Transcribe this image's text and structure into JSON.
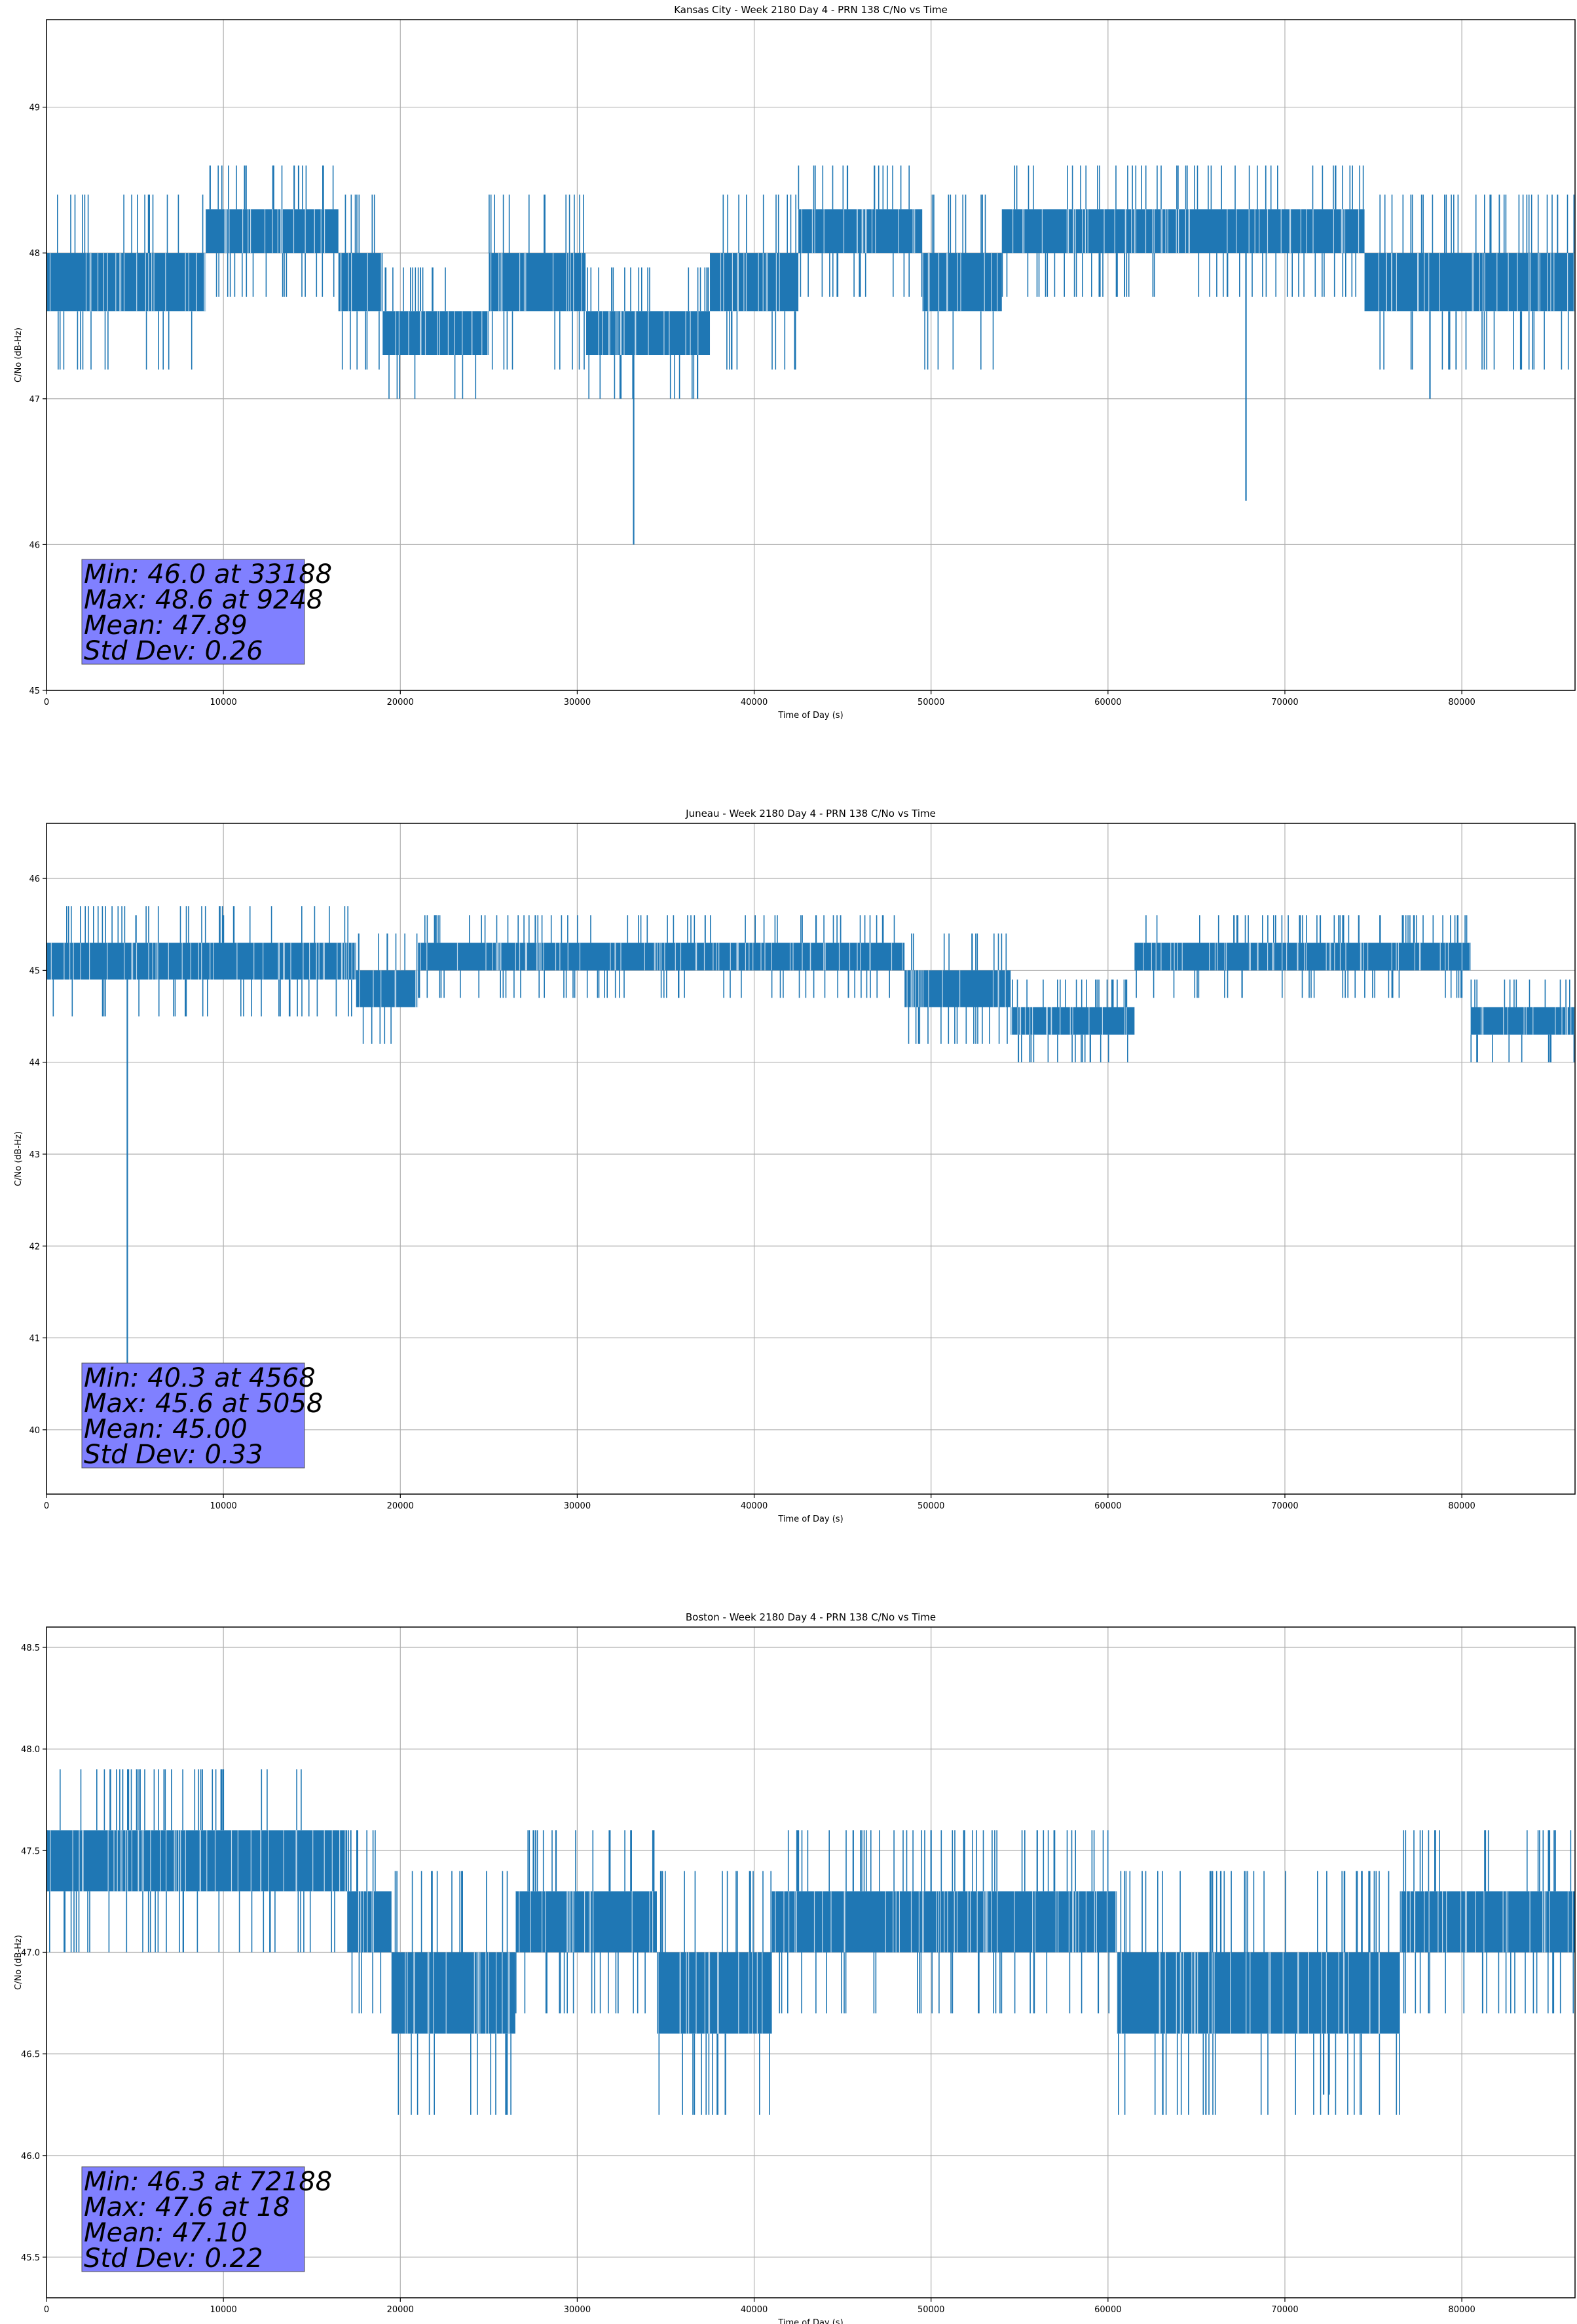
{
  "figure": {
    "background": "#ffffff",
    "line_color": "#1f77b4",
    "statbox_color": "#8080ff",
    "grid_color": "#b0b0b0"
  },
  "chart_data": [
    {
      "type": "line",
      "title": "Kansas City - Week 2180 Day 4 - PRN 138 C/No vs Time",
      "xlabel": "Time of Day (s)",
      "ylabel": "C/No (dB-Hz)",
      "xlim": [
        0,
        86400
      ],
      "ylim": [
        45.0,
        49.6
      ],
      "xticks": [
        0,
        10000,
        20000,
        30000,
        40000,
        50000,
        60000,
        70000,
        80000
      ],
      "yticks": [
        45,
        46,
        47,
        48,
        49
      ],
      "ytick_labels": [
        "45",
        "46",
        "47",
        "48",
        "49"
      ],
      "grid": true,
      "series": [
        {
          "name": "C/No",
          "segments": [
            {
              "start": 0,
              "end": 9000,
              "low": 47.6,
              "high": 48.0
            },
            {
              "start": 9000,
              "end": 16500,
              "low": 48.0,
              "high": 48.3
            },
            {
              "start": 16500,
              "end": 19000,
              "low": 47.6,
              "high": 48.0
            },
            {
              "start": 19000,
              "end": 25000,
              "low": 47.3,
              "high": 47.6
            },
            {
              "start": 25000,
              "end": 30500,
              "low": 47.6,
              "high": 48.0
            },
            {
              "start": 30500,
              "end": 37500,
              "low": 47.3,
              "high": 47.6
            },
            {
              "start": 37500,
              "end": 42500,
              "low": 47.6,
              "high": 48.0
            },
            {
              "start": 42500,
              "end": 49500,
              "low": 48.0,
              "high": 48.3
            },
            {
              "start": 49500,
              "end": 54000,
              "low": 47.6,
              "high": 48.0
            },
            {
              "start": 54000,
              "end": 74500,
              "low": 48.0,
              "high": 48.3
            },
            {
              "start": 74500,
              "end": 86400,
              "low": 47.6,
              "high": 48.0
            }
          ],
          "spikes": [
            [
              9248,
              48.6
            ],
            [
              11200,
              48.6
            ],
            [
              12800,
              48.6
            ],
            [
              14000,
              48.6
            ],
            [
              46800,
              48.6
            ],
            [
              33188,
              46.0
            ],
            [
              36800,
              47.0
            ],
            [
              67800,
              46.3
            ],
            [
              78200,
              47.0
            ]
          ]
        }
      ],
      "stats": {
        "min": "Min: 46.0 at 33188",
        "max": "Max: 48.6 at 9248",
        "mean": "Mean: 47.89",
        "std": "Std Dev: 0.26"
      }
    },
    {
      "type": "line",
      "title": "Juneau - Week 2180 Day 4 - PRN 138 C/No vs Time",
      "xlabel": "Time of Day (s)",
      "ylabel": "C/No (dB-Hz)",
      "xlim": [
        0,
        86400
      ],
      "ylim": [
        39.3,
        46.6
      ],
      "xticks": [
        0,
        10000,
        20000,
        30000,
        40000,
        50000,
        60000,
        70000,
        80000
      ],
      "yticks": [
        40,
        41,
        42,
        43,
        44,
        45,
        46
      ],
      "ytick_labels": [
        "40",
        "41",
        "42",
        "43",
        "44",
        "45",
        "46"
      ],
      "grid": true,
      "series": [
        {
          "name": "C/No",
          "segments": [
            {
              "start": 0,
              "end": 17500,
              "low": 44.9,
              "high": 45.3
            },
            {
              "start": 17500,
              "end": 21000,
              "low": 44.6,
              "high": 45.0
            },
            {
              "start": 21000,
              "end": 48500,
              "low": 45.0,
              "high": 45.3
            },
            {
              "start": 48500,
              "end": 54500,
              "low": 44.6,
              "high": 45.0
            },
            {
              "start": 54500,
              "end": 61500,
              "low": 44.3,
              "high": 44.6
            },
            {
              "start": 61500,
              "end": 80500,
              "low": 45.0,
              "high": 45.3
            },
            {
              "start": 80500,
              "end": 86400,
              "low": 44.3,
              "high": 44.6
            }
          ],
          "spikes": [
            [
              4568,
              40.3
            ],
            [
              5058,
              45.6
            ],
            [
              10000,
              45.6
            ],
            [
              22000,
              45.6
            ],
            [
              43500,
              45.6
            ],
            [
              59000,
              44.0
            ],
            [
              72000,
              45.6
            ],
            [
              85000,
              44.0
            ]
          ]
        }
      ],
      "stats": {
        "min": "Min: 40.3 at 4568",
        "max": "Max: 45.6 at 5058",
        "mean": "Mean: 45.00",
        "std": "Std Dev: 0.33"
      }
    },
    {
      "type": "line",
      "title": "Boston - Week 2180 Day 4 - PRN 138 C/No vs Time",
      "xlabel": "Time of Day (s)",
      "ylabel": "C/No (dB-Hz)",
      "xlim": [
        0,
        86400
      ],
      "ylim": [
        45.3,
        48.6
      ],
      "xticks": [
        0,
        10000,
        20000,
        30000,
        40000,
        50000,
        60000,
        70000,
        80000
      ],
      "yticks": [
        45.5,
        46.0,
        46.5,
        47.0,
        47.5,
        48.0,
        48.5
      ],
      "ytick_labels": [
        "45.5",
        "46.0",
        "46.5",
        "47.0",
        "47.5",
        "48.0",
        "48.5"
      ],
      "grid": true,
      "series": [
        {
          "name": "C/No",
          "segments": [
            {
              "start": 0,
              "end": 17000,
              "low": 47.3,
              "high": 47.6
            },
            {
              "start": 17000,
              "end": 19500,
              "low": 47.0,
              "high": 47.3
            },
            {
              "start": 19500,
              "end": 26500,
              "low": 46.6,
              "high": 47.0
            },
            {
              "start": 26500,
              "end": 34500,
              "low": 47.0,
              "high": 47.3
            },
            {
              "start": 34500,
              "end": 41000,
              "low": 46.6,
              "high": 47.0
            },
            {
              "start": 41000,
              "end": 60500,
              "low": 47.0,
              "high": 47.3
            },
            {
              "start": 60500,
              "end": 76500,
              "low": 46.6,
              "high": 47.0
            },
            {
              "start": 76500,
              "end": 86400,
              "low": 47.0,
              "high": 47.3
            }
          ],
          "spikes": [
            [
              18,
              47.6
            ],
            [
              28800,
              47.6
            ],
            [
              45600,
              47.6
            ],
            [
              50000,
              47.6
            ],
            [
              56000,
              47.6
            ],
            [
              72188,
              46.3
            ],
            [
              72500,
              46.3
            ]
          ]
        }
      ],
      "stats": {
        "min": "Min: 46.3 at 72188",
        "max": "Max: 47.6 at 18",
        "mean": "Mean: 47.10",
        "std": "Std Dev: 0.22"
      }
    }
  ]
}
